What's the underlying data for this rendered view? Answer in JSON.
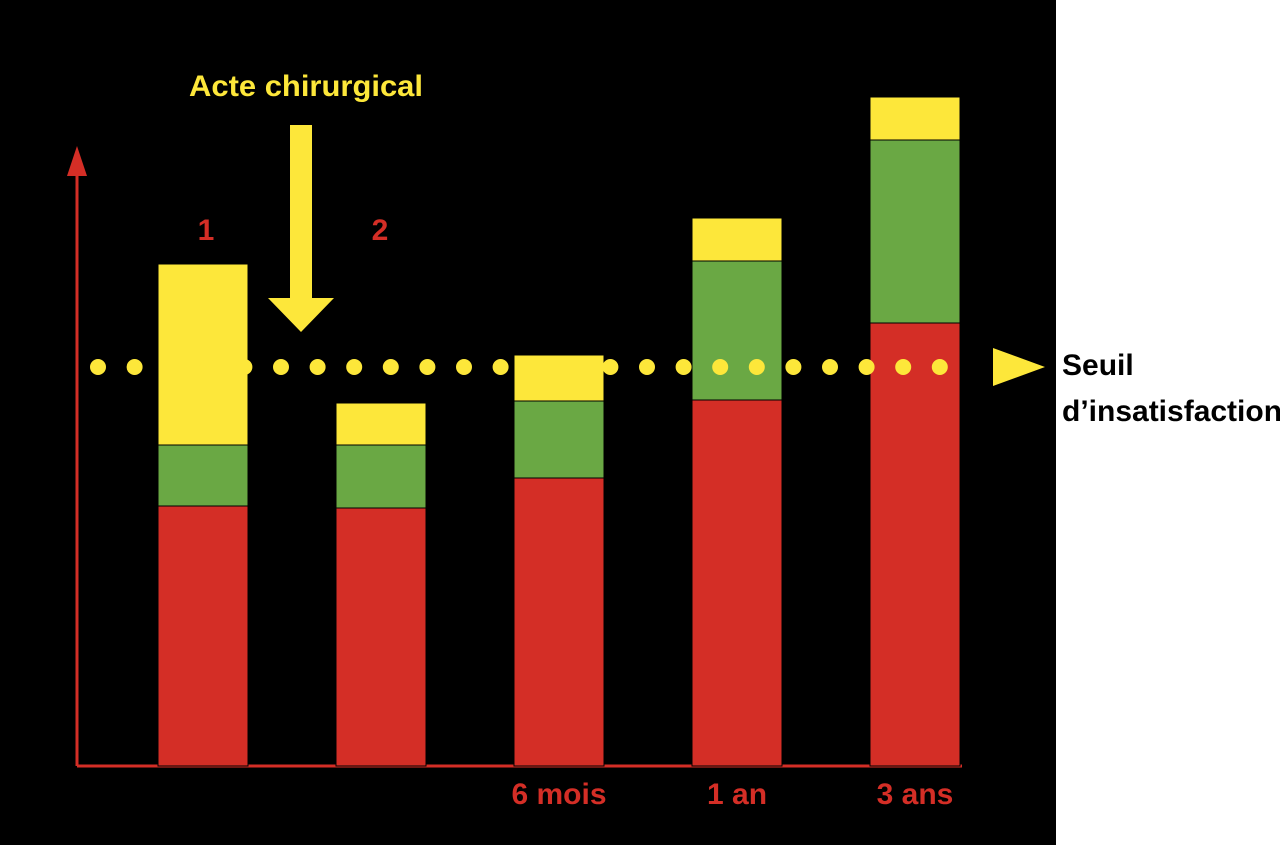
{
  "chart_data": {
    "type": "stacked_bar",
    "annotation": "Acte chirurgical",
    "bar_labels": [
      "1",
      "2",
      null,
      null,
      null
    ],
    "categories": [
      null,
      null,
      "6 mois",
      "1 an",
      "3 ans"
    ],
    "series": [
      {
        "color": "#d42e26",
        "values": [
          260,
          258,
          288,
          366,
          443
        ]
      },
      {
        "color": "#6aa844",
        "values": [
          61,
          63,
          77,
          139,
          183
        ]
      },
      {
        "color": "#fde73a",
        "values": [
          181,
          42,
          46,
          43,
          43
        ]
      }
    ],
    "threshold": 399,
    "threshold_label": [
      "Seuil",
      "d’insatisfaction"
    ],
    "ylim": [
      0,
      766
    ]
  }
}
